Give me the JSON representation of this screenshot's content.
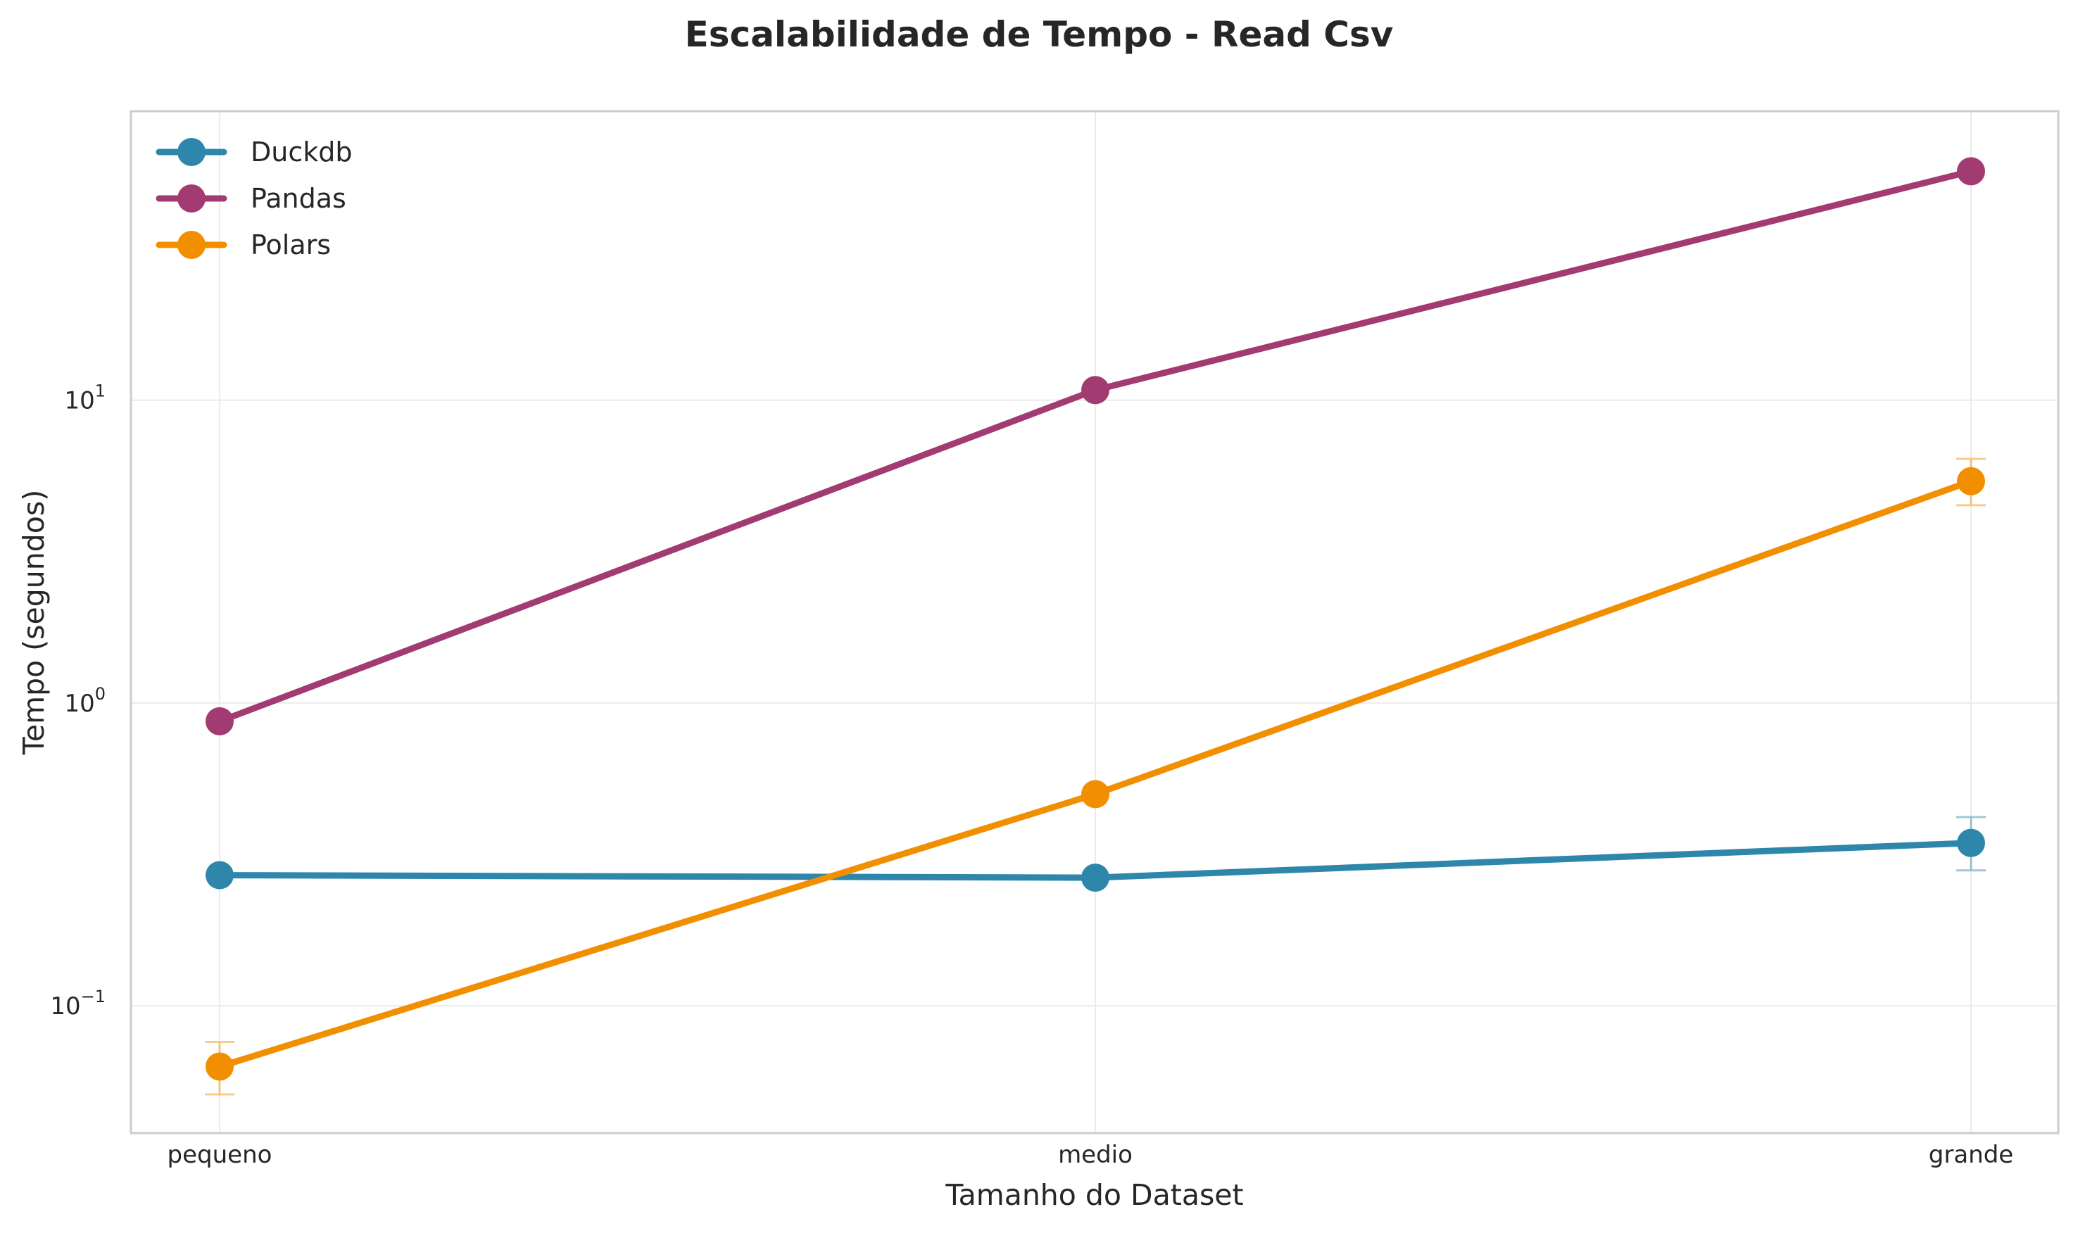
{
  "chart_data": {
    "type": "line",
    "title": "Escalabilidade de Tempo - Read Csv",
    "xlabel": "Tamanho do Dataset",
    "ylabel": "Tempo (segundos)",
    "categories": [
      "pequeno",
      "medio",
      "grande"
    ],
    "yscale": "log",
    "ylim": [
      0.038,
      90
    ],
    "y_ticks": [
      {
        "value": 0.1,
        "base": "10",
        "exp": "−1"
      },
      {
        "value": 1,
        "base": "10",
        "exp": "0"
      },
      {
        "value": 10,
        "base": "10",
        "exp": "1"
      }
    ],
    "grid": true,
    "legend": "top-left",
    "series": [
      {
        "name": "Duckdb",
        "color": "#2E86AB",
        "values": [
          0.27,
          0.265,
          0.345
        ],
        "error_low": [
          0.27,
          0.265,
          0.28
        ],
        "error_high": [
          0.27,
          0.265,
          0.42
        ]
      },
      {
        "name": "Pandas",
        "color": "#A23B72",
        "values": [
          0.87,
          10.8,
          57
        ],
        "error_low": [
          0.87,
          10.8,
          57
        ],
        "error_high": [
          0.87,
          10.8,
          57
        ]
      },
      {
        "name": "Polars",
        "color": "#F18F01",
        "values": [
          0.063,
          0.5,
          5.4
        ],
        "error_low": [
          0.051,
          0.5,
          4.5
        ],
        "error_high": [
          0.076,
          0.5,
          6.4
        ]
      }
    ]
  }
}
